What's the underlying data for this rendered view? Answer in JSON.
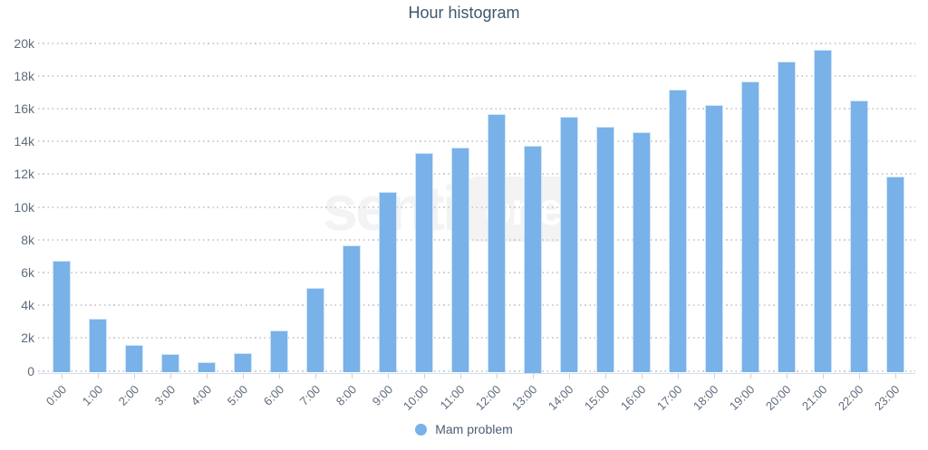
{
  "chart_data": {
    "type": "bar",
    "title": "Hour histogram",
    "categories": [
      "0:00",
      "1:00",
      "2:00",
      "3:00",
      "4:00",
      "5:00",
      "6:00",
      "7:00",
      "8:00",
      "9:00",
      "10:00",
      "11:00",
      "12:00",
      "13:00",
      "14:00",
      "15:00",
      "16:00",
      "17:00",
      "18:00",
      "19:00",
      "20:00",
      "21:00",
      "22:00",
      "23:00"
    ],
    "series": [
      {
        "name": "Mam problem",
        "values": [
          6700,
          3150,
          1550,
          1000,
          550,
          1050,
          2450,
          5050,
          7650,
          10900,
          13300,
          13600,
          15650,
          13750,
          15500,
          14900,
          14550,
          17150,
          16200,
          17650,
          18850,
          19600,
          16500,
          11850
        ]
      }
    ],
    "xlabel": "",
    "ylabel": "",
    "ylim": [
      0,
      20000
    ],
    "yticks": [
      {
        "value": 0,
        "label": "0"
      },
      {
        "value": 2000,
        "label": "2k"
      },
      {
        "value": 4000,
        "label": "4k"
      },
      {
        "value": 6000,
        "label": "6k"
      },
      {
        "value": 8000,
        "label": "8k"
      },
      {
        "value": 10000,
        "label": "10k"
      },
      {
        "value": 12000,
        "label": "12k"
      },
      {
        "value": 14000,
        "label": "14k"
      },
      {
        "value": 16000,
        "label": "16k"
      },
      {
        "value": 18000,
        "label": "18k"
      },
      {
        "value": 20000,
        "label": "20k"
      }
    ],
    "grid": "dotted-horizontal",
    "legend_position": "bottom-center",
    "x_label_rotation": -45
  },
  "watermark": {
    "senti": "senti",
    "one": "one"
  },
  "colors": {
    "title": "#3e576f",
    "axis_label": "#5f6b7c",
    "legend_text": "#4a5e73",
    "bar": "#79b1e9",
    "grid_dot": "#cfcfcf",
    "axis_line": "#cfdff1",
    "tick": "#c9d1d9",
    "watermark": "#f3f3f4"
  }
}
